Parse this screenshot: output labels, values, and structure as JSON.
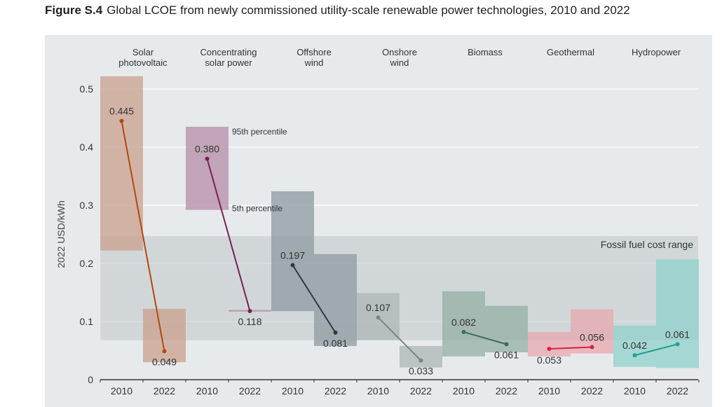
{
  "figure": {
    "label": "Figure S.4",
    "title": "Global LCOE from newly commissioned utility-scale renewable power technologies, 2010 and 2022"
  },
  "chart_data": {
    "type": "range-bar-slope",
    "ylabel": "2022 USD/kWh",
    "ylim": [
      0,
      0.55
    ],
    "yticks": [
      "0",
      "0.1",
      "0.2",
      "0.3",
      "0.4",
      "0.5"
    ],
    "ytick_values": [
      0,
      0.1,
      0.2,
      0.3,
      0.4,
      0.5
    ],
    "grid": true,
    "years": [
      "2010",
      "2022"
    ],
    "fossil_range": {
      "label": "Fossil fuel cost range",
      "low": 0.068,
      "high": 0.247
    },
    "percentile_labels": {
      "p95": "95th percentile",
      "p5": "5th percentile"
    },
    "technologies": [
      {
        "name": "Solar photovoltaic",
        "name_lines": [
          "Solar",
          "photovoltaic"
        ],
        "color": "#b5480f",
        "box_color": "#c9a08e",
        "v2010": 0.445,
        "v2022": 0.049,
        "r2010": [
          0.222,
          0.522
        ],
        "r2022": [
          0.03,
          0.122
        ],
        "l2010": "0.445",
        "l2022": "0.049"
      },
      {
        "name": "Concentrating solar power",
        "name_lines": [
          "Concentrating",
          "solar power"
        ],
        "color": "#7a2058",
        "box_color": "#b48ca6",
        "v2010": 0.38,
        "v2022": 0.118,
        "r2010": [
          0.292,
          0.435
        ],
        "r2022": [
          0.117,
          0.12
        ],
        "l2010": "0.380",
        "l2022": "0.118"
      },
      {
        "name": "Offshore wind",
        "name_lines": [
          "Offshore",
          "wind"
        ],
        "color": "#2e3a3a",
        "box_color": "#8c9ba0",
        "v2010": 0.197,
        "v2022": 0.081,
        "r2010": [
          0.118,
          0.324
        ],
        "r2022": [
          0.058,
          0.216
        ],
        "l2010": "0.197",
        "l2022": "0.081"
      },
      {
        "name": "Onshore wind",
        "name_lines": [
          "Onshore",
          "wind"
        ],
        "color": "#7e8486",
        "box_color": "#adb6b8",
        "v2010": 0.107,
        "v2022": 0.033,
        "r2010": [
          0.068,
          0.149
        ],
        "r2022": [
          0.021,
          0.058
        ],
        "l2010": "0.107",
        "l2022": "0.033"
      },
      {
        "name": "Biomass",
        "name_lines": [
          "Biomass"
        ],
        "color": "#3e6b58",
        "box_color": "#93afa6",
        "v2010": 0.082,
        "v2022": 0.061,
        "r2010": [
          0.04,
          0.152
        ],
        "r2022": [
          0.047,
          0.127
        ],
        "l2010": "0.082",
        "l2022": "0.061"
      },
      {
        "name": "Geothermal",
        "name_lines": [
          "Geothermal"
        ],
        "color": "#d9223c",
        "box_color": "#e8a7b0",
        "v2010": 0.053,
        "v2022": 0.056,
        "r2010": [
          0.04,
          0.082
        ],
        "r2022": [
          0.045,
          0.121
        ],
        "l2010": "0.053",
        "l2022": "0.056"
      },
      {
        "name": "Hydropower",
        "name_lines": [
          "Hydropower"
        ],
        "color": "#20a090",
        "box_color": "#8fd0cc",
        "v2010": 0.042,
        "v2022": 0.061,
        "r2010": [
          0.022,
          0.093
        ],
        "r2022": [
          0.02,
          0.207
        ],
        "l2010": "0.042",
        "l2022": "0.061"
      }
    ]
  }
}
